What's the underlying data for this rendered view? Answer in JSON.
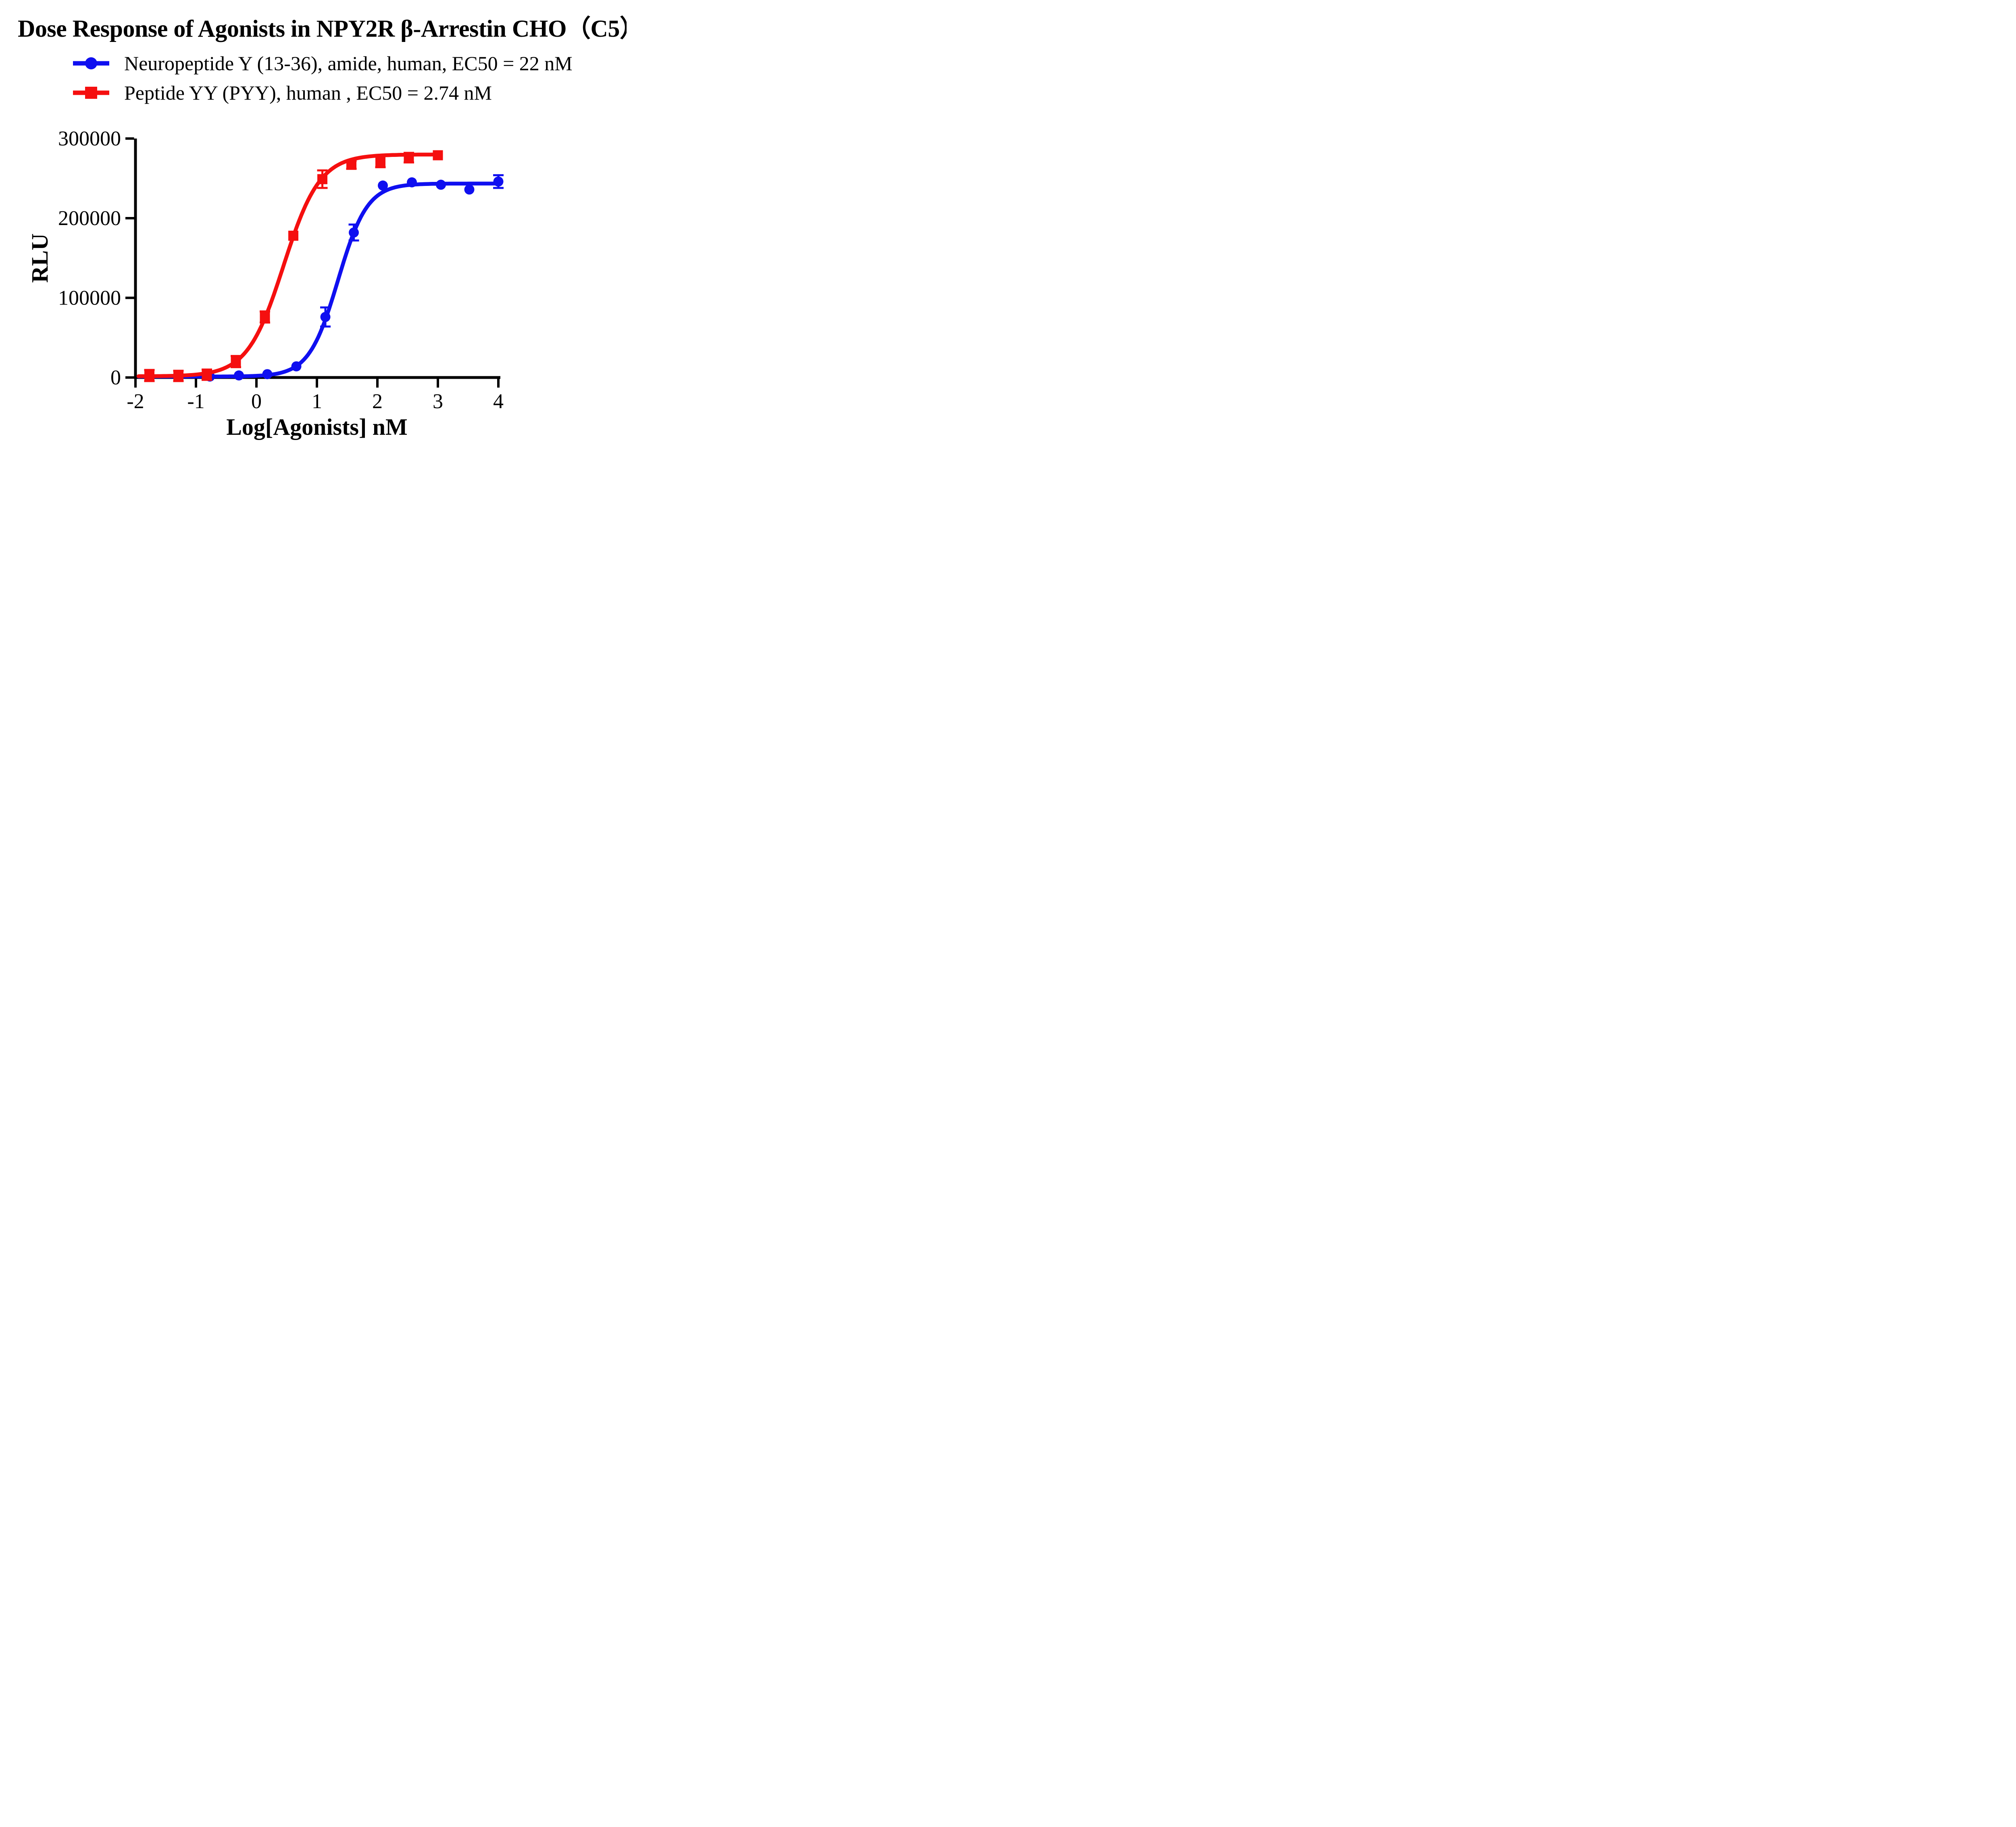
{
  "title": "Dose Response of Agonists in NPY2R β-Arrestin CHO（C5）",
  "legend": [
    {
      "label": "Neuropeptide Y (13-36), amide, human, EC50 = 22 nM",
      "marker": "circle",
      "color": "#0f0ff0"
    },
    {
      "label": "Peptide YY (PYY), human , EC50 = 2.74 nM",
      "marker": "square",
      "color": "#f50f0f"
    }
  ],
  "chart_data": {
    "type": "scatter",
    "title": "Dose Response of Agonists in NPY2R β-Arrestin CHO（C5）",
    "xlabel": "Log[Agonists] nM",
    "ylabel": "RLU",
    "xlim": [
      -2,
      4
    ],
    "ylim": [
      0,
      300000
    ],
    "xticks": [
      -2,
      -1,
      0,
      1,
      2,
      3,
      4
    ],
    "xticklabels": [
      "-2",
      "-1",
      "0",
      "1",
      "2",
      "3",
      "4"
    ],
    "yticks": [
      0,
      100000,
      200000,
      300000
    ],
    "yticklabels": [
      "0",
      "100000",
      "200000",
      "300000"
    ],
    "grid": false,
    "legend_position": "top-left",
    "series": [
      {
        "name": "Neuropeptide Y (13-36), amide, human",
        "ec50_label": "EC50 = 22 nM",
        "color": "#0f0ff0",
        "marker": "circle",
        "x": [
          -0.77,
          -0.29,
          0.18,
          0.66,
          1.14,
          1.61,
          2.09,
          2.57,
          3.05,
          3.52,
          4.0
        ],
        "y": [
          1200,
          2600,
          4200,
          14000,
          76000,
          182000,
          241000,
          245000,
          242000,
          236000,
          246000
        ],
        "yerr": [
          0,
          0,
          0,
          0,
          12000,
          10000,
          0,
          0,
          0,
          0,
          8000
        ],
        "fit": {
          "bottom": 1200,
          "top": 243500,
          "logEC50": 1.35,
          "hill": 1.8,
          "xstart": -1.95,
          "xend": 4.02
        }
      },
      {
        "name": "Peptide YY (PYY), human",
        "ec50_label": "EC50 = 2.74 nM",
        "color": "#f50f0f",
        "marker": "square",
        "x": [
          -1.77,
          -1.29,
          -0.82,
          -0.34,
          0.14,
          0.61,
          1.09,
          1.57,
          2.05,
          2.52,
          3.0
        ],
        "y": [
          2500,
          2000,
          3500,
          20000,
          76000,
          178000,
          249000,
          267000,
          271000,
          276000,
          279000
        ],
        "yerr": [
          7000,
          6500,
          6500,
          7000,
          7000,
          0,
          11000,
          5000,
          7000,
          6000,
          0
        ],
        "fit": {
          "bottom": 1500,
          "top": 280000,
          "logEC50": 0.45,
          "hill": 1.45,
          "xstart": -1.95,
          "xend": 3.02
        }
      }
    ]
  }
}
